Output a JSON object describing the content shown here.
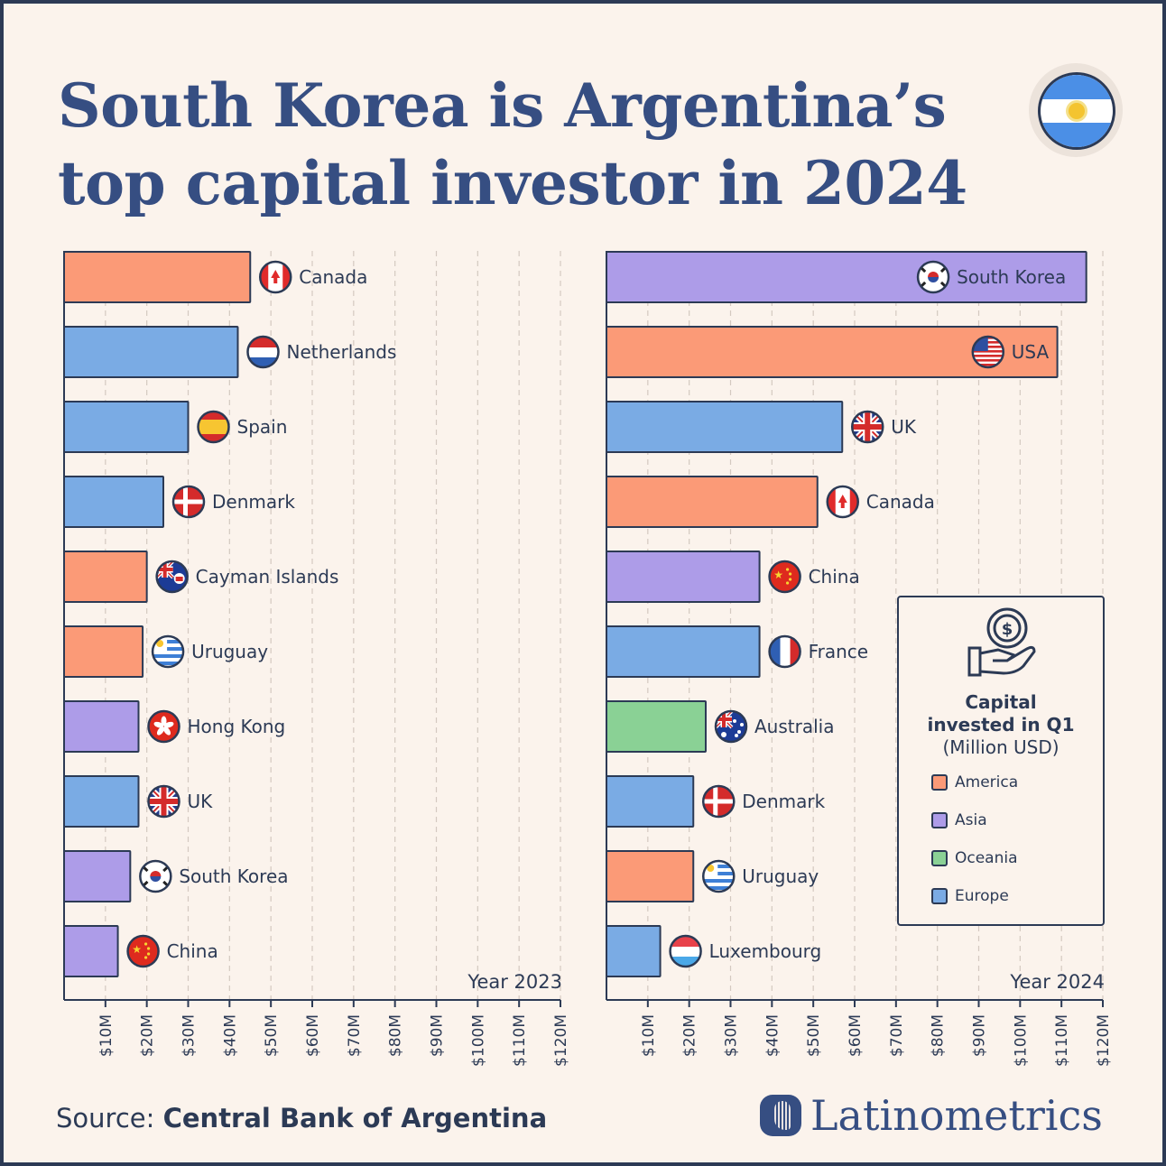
{
  "header": {
    "title_line1": "South Korea is Argentina’s",
    "title_line2": "top capital investor in 2024"
  },
  "legend": {
    "title_line1": "Capital",
    "title_line2": "invested in Q1",
    "subtitle": "(Million USD)",
    "items": [
      {
        "label": "America",
        "color": "#fb9a77"
      },
      {
        "label": "Asia",
        "color": "#ad9ce8"
      },
      {
        "label": "Oceania",
        "color": "#8ad195"
      },
      {
        "label": "Europe",
        "color": "#7aabe4"
      }
    ]
  },
  "footer": {
    "source_label": "Source:",
    "source_value": "Central Bank of Argentina",
    "brand": "Latinometrics"
  },
  "colors": {
    "America": "#fb9a77",
    "Asia": "#ad9ce8",
    "Oceania": "#8ad195",
    "Europe": "#7aabe4",
    "axis": "#2c3a55",
    "grid": "#d4c9c0"
  },
  "chart_data": [
    {
      "type": "bar",
      "orientation": "horizontal",
      "annotation": "Year 2023",
      "xlim": [
        0,
        120
      ],
      "ticks": [
        "$10M",
        "$20M",
        "$30M",
        "$40M",
        "$50M",
        "$60M",
        "$70M",
        "$80M",
        "$90M",
        "$100M",
        "$110M",
        "$120M"
      ],
      "grid": true,
      "categories": [
        "Canada",
        "Netherlands",
        "Spain",
        "Denmark",
        "Cayman Islands",
        "Uruguay",
        "Hong Kong",
        "UK",
        "South Korea",
        "China"
      ],
      "values": [
        45,
        42,
        30,
        24,
        20,
        19,
        18,
        18,
        16,
        13
      ],
      "regions": [
        "America",
        "Europe",
        "Europe",
        "Europe",
        "America",
        "America",
        "Asia",
        "Europe",
        "Asia",
        "Asia"
      ],
      "flags": [
        "canada-flag",
        "netherlands-flag",
        "spain-flag",
        "denmark-flag",
        "cayman-islands-flag",
        "uruguay-flag",
        "hong-kong-flag",
        "uk-flag",
        "south-korea-flag",
        "china-flag"
      ]
    },
    {
      "type": "bar",
      "orientation": "horizontal",
      "annotation": "Year 2024",
      "xlim": [
        0,
        120
      ],
      "ticks": [
        "$10M",
        "$20M",
        "$30M",
        "$40M",
        "$50M",
        "$60M",
        "$70M",
        "$80M",
        "$90M",
        "$100M",
        "$110M",
        "$120M"
      ],
      "grid": true,
      "categories": [
        "South Korea",
        "USA",
        "UK",
        "Canada",
        "China",
        "France",
        "Australia",
        "Denmark",
        "Uruguay",
        "Luxembourg"
      ],
      "values": [
        116,
        109,
        57,
        51,
        37,
        37,
        24,
        21,
        21,
        13
      ],
      "regions": [
        "Asia",
        "America",
        "Europe",
        "America",
        "Asia",
        "Europe",
        "Oceania",
        "Europe",
        "America",
        "Europe"
      ],
      "flags": [
        "south-korea-flag",
        "usa-flag",
        "uk-flag",
        "canada-flag",
        "china-flag",
        "france-flag",
        "australia-flag",
        "denmark-flag",
        "uruguay-flag",
        "luxembourg-flag"
      ]
    }
  ]
}
